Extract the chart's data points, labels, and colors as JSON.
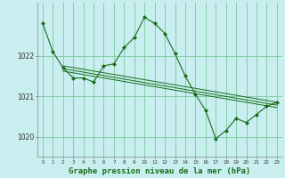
{
  "background_color": "#c8eef0",
  "grid_color": "#88ccaa",
  "line_color": "#1a6e1a",
  "marker_color": "#1a6e1a",
  "xlabel": "Graphe pression niveau de la mer (hPa)",
  "xlabel_fontsize": 6.5,
  "yticks": [
    1020,
    1021,
    1022
  ],
  "ytick_labels": [
    "1020",
    "1021",
    "1022"
  ],
  "xlim": [
    -0.5,
    23.5
  ],
  "ylim": [
    1019.5,
    1023.3
  ],
  "main_series": {
    "x": [
      0,
      1,
      2,
      3,
      4,
      5,
      6,
      7,
      8,
      9,
      10,
      11,
      12,
      13,
      14,
      15,
      16,
      17,
      18,
      19,
      20,
      21,
      22,
      23
    ],
    "y": [
      1022.8,
      1022.1,
      1021.7,
      1021.45,
      1021.45,
      1021.35,
      1021.75,
      1021.8,
      1022.2,
      1022.45,
      1022.95,
      1022.8,
      1022.55,
      1022.05,
      1021.5,
      1021.05,
      1020.65,
      1019.95,
      1020.15,
      1020.45,
      1020.35,
      1020.55,
      1020.75,
      1020.85
    ]
  },
  "trend_lines": [
    {
      "x": [
        2,
        23
      ],
      "y": [
        1021.75,
        1020.85
      ]
    },
    {
      "x": [
        2,
        23
      ],
      "y": [
        1021.68,
        1020.78
      ]
    },
    {
      "x": [
        2,
        23
      ],
      "y": [
        1021.62,
        1020.72
      ]
    }
  ]
}
